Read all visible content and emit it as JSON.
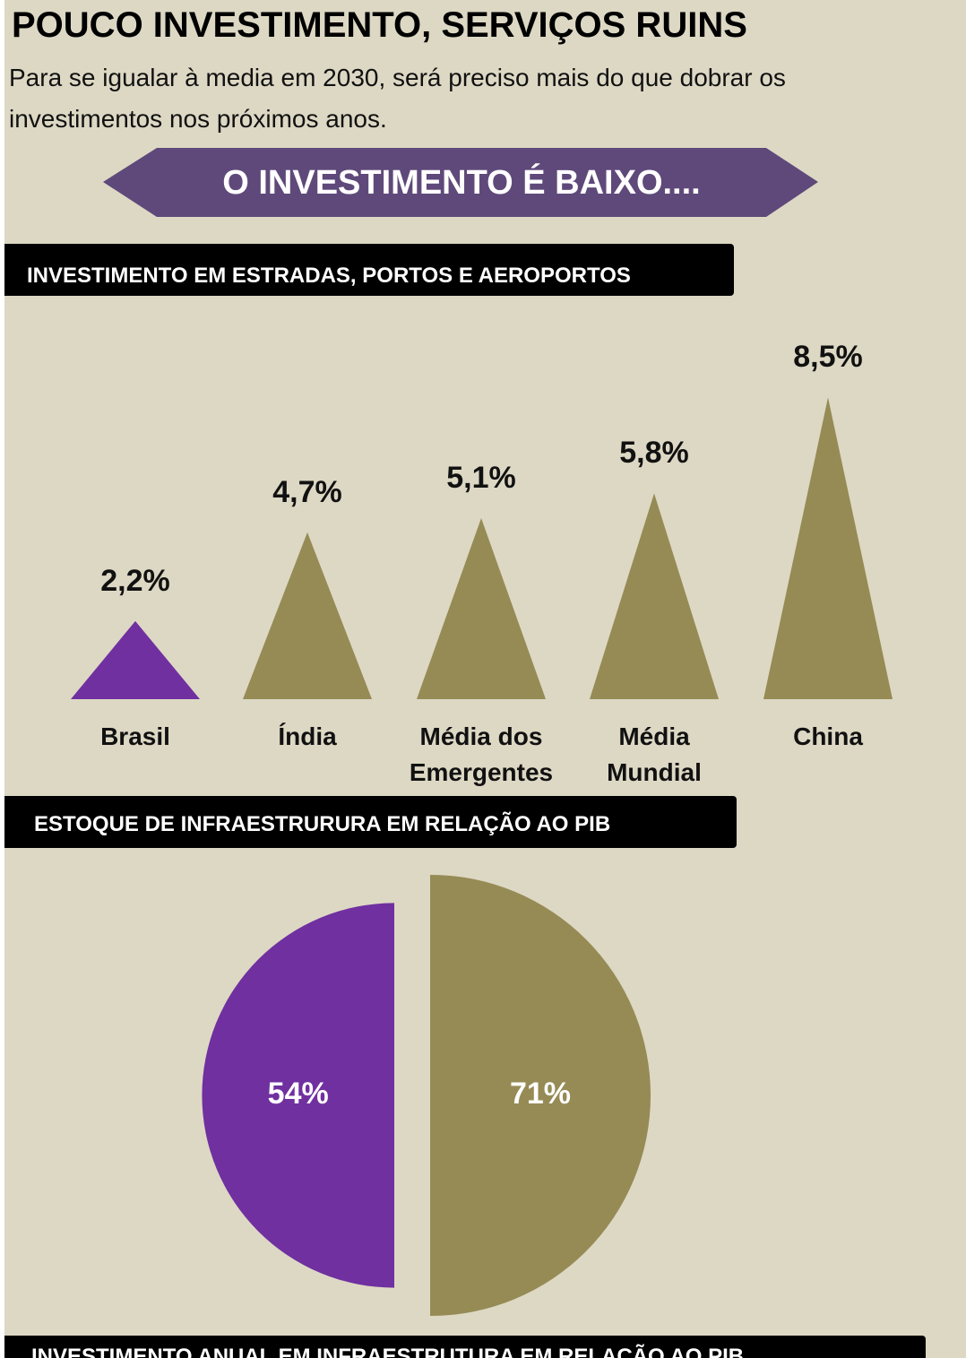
{
  "header": {
    "title": "POUCO INVESTIMENTO, SERVIÇOS RUINS",
    "subtitle": "Para se igualar à media em 2030, será preciso mais do que dobrar os investimentos nos próximos anos."
  },
  "banner": "O INVESTIMENTO É BAIXO....",
  "chart_data": [
    {
      "type": "bar",
      "title": "INVESTIMENTO EM ESTRADAS, PORTOS E AEROPORTOS",
      "categories": [
        "Brasil",
        "Índia",
        "Média dos Emergentes",
        "Média Mundial",
        "China"
      ],
      "values": [
        2.2,
        4.7,
        5.1,
        5.8,
        8.5
      ],
      "value_labels": [
        "2,2%",
        "4,7%",
        "5,1%",
        "5,8%",
        "8,5%"
      ],
      "colors": [
        "#7030a0",
        "#968b55",
        "#968b55",
        "#968b55",
        "#968b55"
      ]
    },
    {
      "type": "pie",
      "title": "ESTOQUE DE INFRAESTRURURA EM RELAÇÃO AO PIB",
      "values": [
        54,
        71
      ],
      "value_labels": [
        "54%",
        "71%"
      ],
      "colors": [
        "#7030a0",
        "#968b55"
      ]
    }
  ],
  "footer": {
    "title": "INVESTIMENTO ANUAL EM INFRAESTRUTURA EM RELAÇÃO AO PIB"
  }
}
